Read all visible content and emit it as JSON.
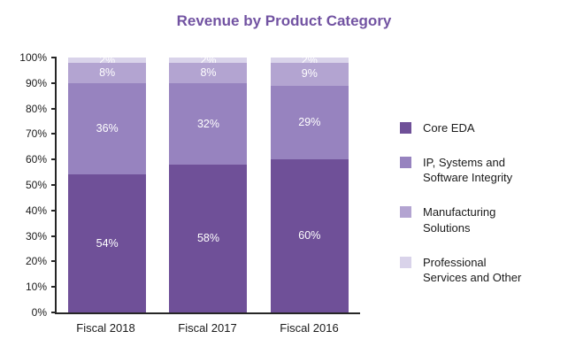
{
  "chart_data": {
    "type": "bar",
    "stacked": true,
    "title": "Revenue by Product Category",
    "xlabel": "",
    "ylabel": "",
    "categories": [
      "Fiscal 2018",
      "Fiscal 2017",
      "Fiscal 2016"
    ],
    "series": [
      {
        "name": "Core EDA",
        "legend_label": "Core EDA",
        "values": [
          54,
          58,
          60
        ],
        "color": "#6f5098"
      },
      {
        "name": "IP, Systems and Software Integrity",
        "legend_label": "IP, Systems and\nSoftware Integrity",
        "values": [
          36,
          32,
          29
        ],
        "color": "#9783bf"
      },
      {
        "name": "Manufacturing Solutions",
        "legend_label": "Manufacturing\nSolutions",
        "values": [
          8,
          8,
          9
        ],
        "color": "#b3a4d1"
      },
      {
        "name": "Professional Services and Other",
        "legend_label": "Professional\nServices and Other",
        "values": [
          2,
          2,
          2
        ],
        "color": "#d9d3ea"
      }
    ],
    "ylim": [
      0,
      100
    ],
    "ytick_step": 10,
    "ytick_labels": [
      "0%",
      "10%",
      "20%",
      "30%",
      "40%",
      "50%",
      "60%",
      "70%",
      "80%",
      "90%",
      "100%"
    ],
    "data_label_suffix": "%",
    "legend_position": "right",
    "grid": false
  },
  "colors": {
    "title": "#7253a2",
    "axis": "#262626",
    "data_label": "#ffffff",
    "background": "#ffffff"
  }
}
